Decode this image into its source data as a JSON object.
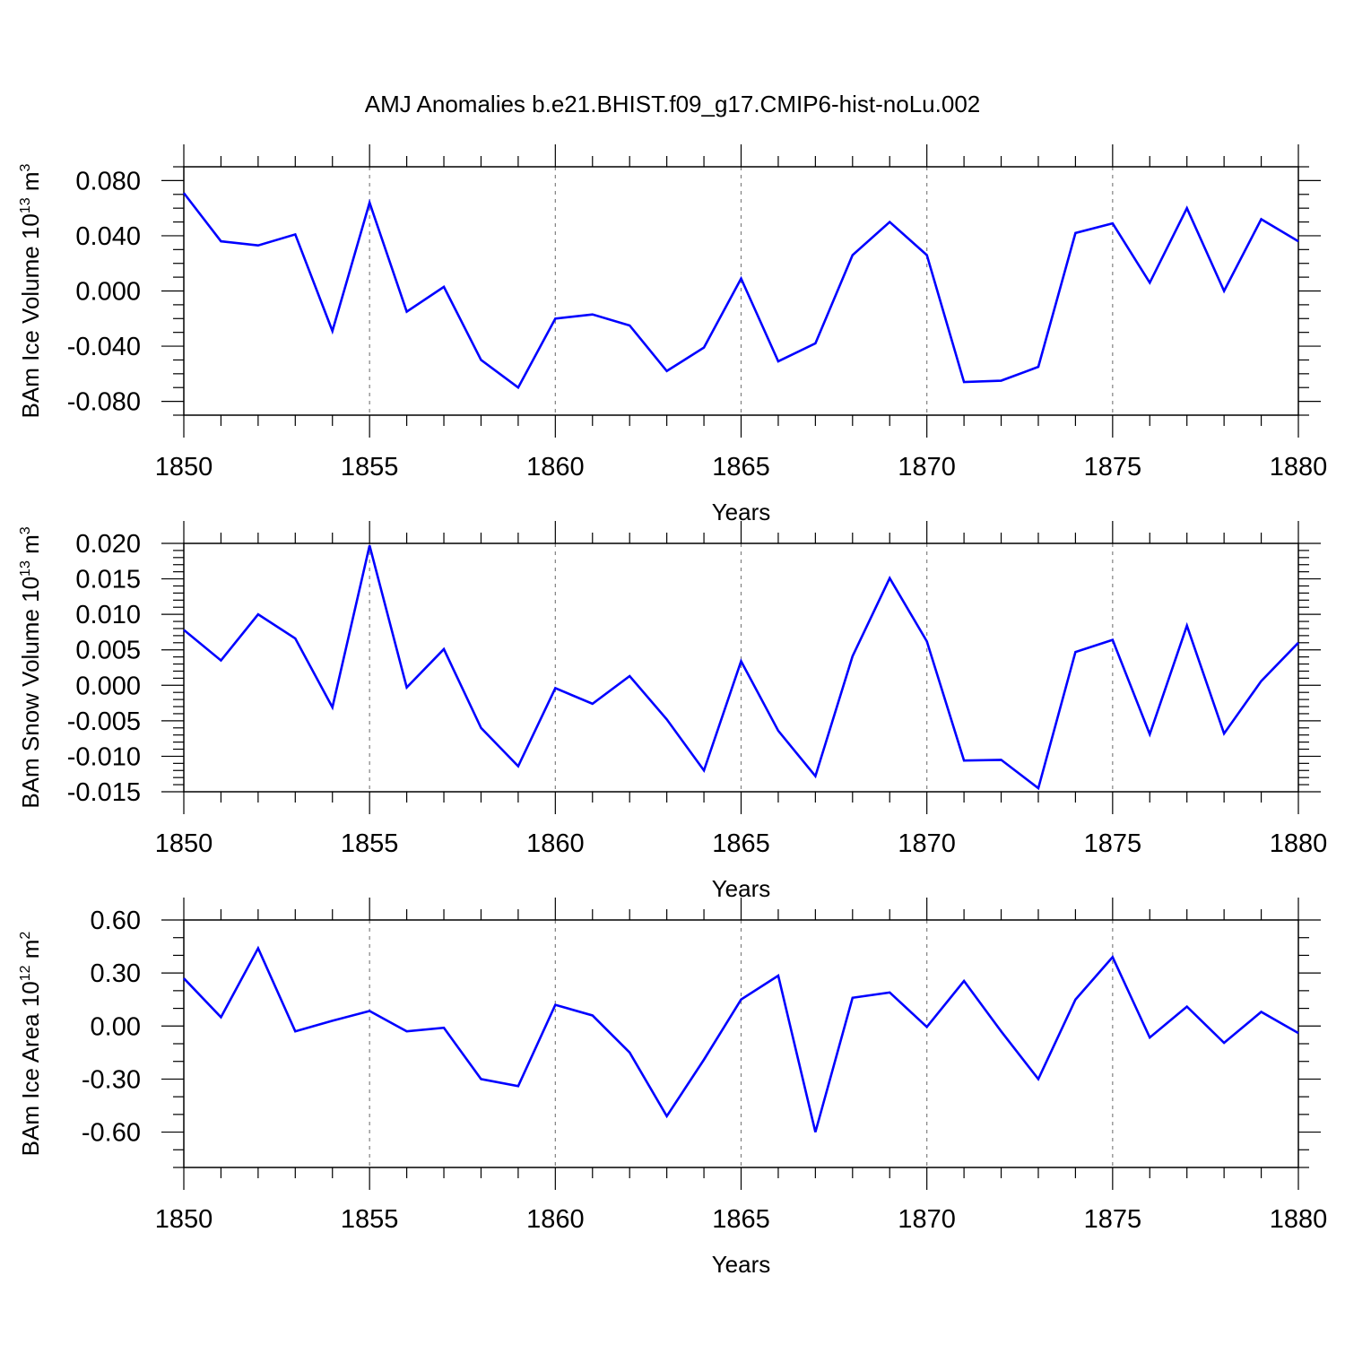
{
  "title": "AMJ Anomalies b.e21.BHIST.f09_g17.CMIP6-hist-noLu.002",
  "colors": {
    "line": "#0000ff",
    "axis": "#000000",
    "grid": "#808080"
  },
  "chart_data": [
    {
      "type": "line",
      "ylabel": "BAm Ice Volume 10",
      "ylabel_exp": "13",
      "ylabel_unit": " m",
      "ylabel_unit_exp": "3",
      "xlabel": "Years",
      "xlim": [
        1850,
        1880
      ],
      "ylim": [
        -0.09,
        0.09
      ],
      "yticks": [
        -0.08,
        -0.04,
        0.0,
        0.04,
        0.08
      ],
      "ytick_labels": [
        "-0.080",
        "-0.040",
        "0.000",
        "0.040",
        "0.080"
      ],
      "ytick_minor_step": 0.01,
      "xticks": [
        1850,
        1855,
        1860,
        1865,
        1870,
        1875,
        1880
      ],
      "xtick_labels": [
        "1850",
        "1855",
        "1860",
        "1865",
        "1870",
        "1875",
        "1880"
      ],
      "grid_vertical_dashed": true,
      "x": [
        1850,
        1851,
        1852,
        1853,
        1854,
        1855,
        1856,
        1857,
        1858,
        1859,
        1860,
        1861,
        1862,
        1863,
        1864,
        1865,
        1866,
        1867,
        1868,
        1869,
        1870,
        1871,
        1872,
        1873,
        1874,
        1875,
        1876,
        1877,
        1878,
        1879,
        1880
      ],
      "values": [
        0.071,
        0.036,
        0.033,
        0.041,
        -0.029,
        0.064,
        -0.015,
        0.003,
        -0.05,
        -0.07,
        -0.02,
        -0.017,
        -0.025,
        -0.058,
        -0.041,
        0.009,
        -0.051,
        -0.038,
        0.026,
        0.05,
        0.026,
        -0.066,
        -0.065,
        -0.055,
        0.042,
        0.049,
        0.006,
        0.06,
        0.0,
        0.052,
        0.036
      ]
    },
    {
      "type": "line",
      "ylabel": "BAm Snow Volume 10",
      "ylabel_exp": "13",
      "ylabel_unit": " m",
      "ylabel_unit_exp": "3",
      "xlabel": "Years",
      "xlim": [
        1850,
        1880
      ],
      "ylim": [
        -0.015,
        0.02
      ],
      "yticks": [
        -0.015,
        -0.01,
        -0.005,
        0.0,
        0.005,
        0.01,
        0.015,
        0.02
      ],
      "ytick_labels": [
        "-0.015",
        "-0.010",
        "-0.005",
        "0.000",
        "0.005",
        "0.010",
        "0.015",
        "0.020"
      ],
      "ytick_minor_step": 0.001,
      "xticks": [
        1850,
        1855,
        1860,
        1865,
        1870,
        1875,
        1880
      ],
      "xtick_labels": [
        "1850",
        "1855",
        "1860",
        "1865",
        "1870",
        "1875",
        "1880"
      ],
      "grid_vertical_dashed": true,
      "x": [
        1850,
        1851,
        1852,
        1853,
        1854,
        1855,
        1856,
        1857,
        1858,
        1859,
        1860,
        1861,
        1862,
        1863,
        1864,
        1865,
        1866,
        1867,
        1868,
        1869,
        1870,
        1871,
        1872,
        1873,
        1874,
        1875,
        1876,
        1877,
        1878,
        1879,
        1880
      ],
      "values": [
        0.0078,
        0.0035,
        0.01,
        0.0066,
        -0.0031,
        0.0197,
        -0.0003,
        0.0051,
        -0.006,
        -0.0114,
        -0.0004,
        -0.0026,
        0.0013,
        -0.0048,
        -0.012,
        0.0034,
        -0.0064,
        -0.0128,
        0.0041,
        0.0151,
        0.0062,
        -0.0106,
        -0.0105,
        -0.0145,
        0.0047,
        0.0064,
        -0.0069,
        0.0084,
        -0.0068,
        0.0006,
        0.006
      ]
    },
    {
      "type": "line",
      "ylabel": "BAm Ice Area 10",
      "ylabel_exp": "12",
      "ylabel_unit": " m",
      "ylabel_unit_exp": "2",
      "xlabel": "Years",
      "xlim": [
        1850,
        1880
      ],
      "ylim": [
        -0.8,
        0.6
      ],
      "yticks": [
        -0.6,
        -0.3,
        0.0,
        0.3,
        0.6
      ],
      "ytick_labels": [
        "-0.60",
        "-0.30",
        "0.00",
        "0.30",
        "0.60"
      ],
      "ytick_minor_step": 0.1,
      "xticks": [
        1850,
        1855,
        1860,
        1865,
        1870,
        1875,
        1880
      ],
      "xtick_labels": [
        "1850",
        "1855",
        "1860",
        "1865",
        "1870",
        "1875",
        "1880"
      ],
      "grid_vertical_dashed": true,
      "x": [
        1850,
        1851,
        1852,
        1853,
        1854,
        1855,
        1856,
        1857,
        1858,
        1859,
        1860,
        1861,
        1862,
        1863,
        1864,
        1865,
        1866,
        1867,
        1868,
        1869,
        1870,
        1871,
        1872,
        1873,
        1874,
        1875,
        1876,
        1877,
        1878,
        1879,
        1880
      ],
      "values": [
        0.27,
        0.05,
        0.44,
        -0.03,
        0.03,
        0.085,
        -0.03,
        -0.01,
        -0.3,
        -0.34,
        0.12,
        0.06,
        -0.15,
        -0.51,
        -0.19,
        0.15,
        0.285,
        -0.6,
        0.16,
        0.19,
        -0.005,
        0.255,
        -0.03,
        -0.3,
        0.15,
        0.39,
        -0.065,
        0.11,
        -0.095,
        0.08,
        -0.04
      ]
    }
  ]
}
